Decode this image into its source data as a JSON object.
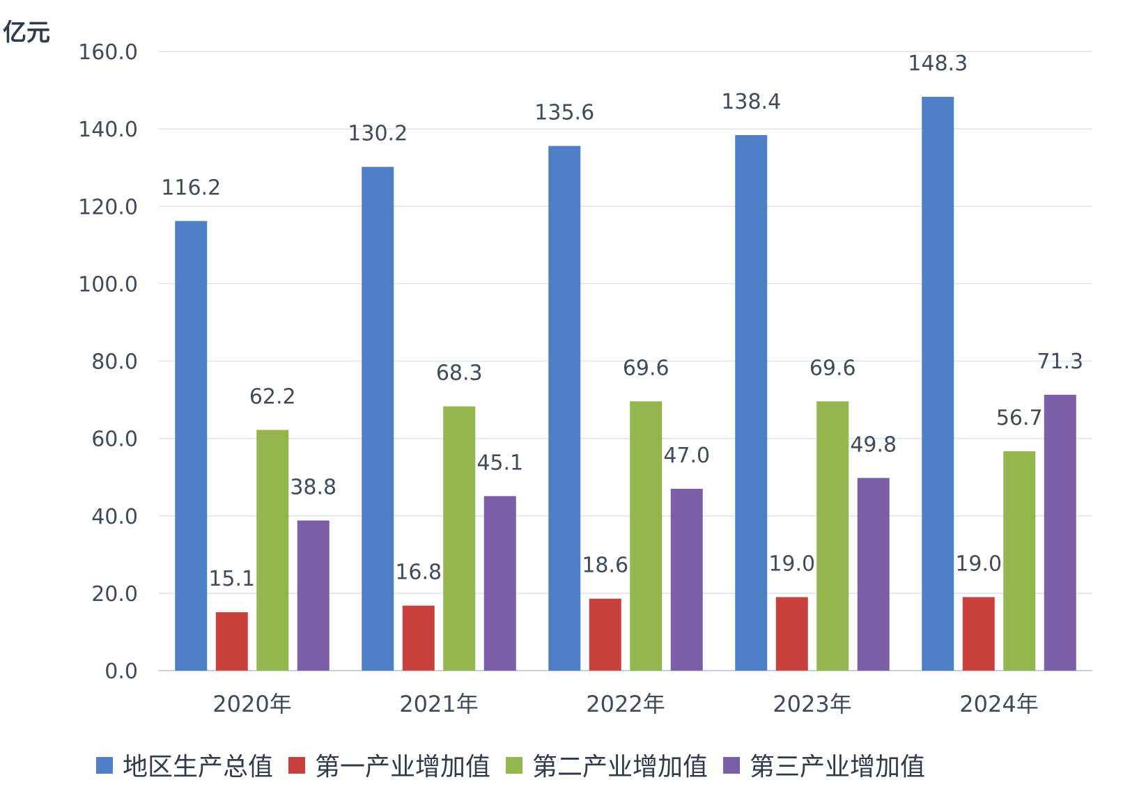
{
  "chart_data": {
    "type": "bar",
    "ylabel": "亿元",
    "ylim": [
      0,
      160
    ],
    "yticks": [
      "0.0",
      "20.0",
      "40.0",
      "60.0",
      "80.0",
      "100.0",
      "120.0",
      "140.0",
      "160.0"
    ],
    "grid": true,
    "legend_position": "bottom",
    "categories": [
      "2020年",
      "2021年",
      "2022年",
      "2023年",
      "2024年"
    ],
    "series": [
      {
        "name": "地区生产总值",
        "color": "#4f7fc4",
        "values": [
          116.2,
          130.2,
          135.6,
          138.4,
          148.3
        ],
        "labels": [
          "116.2",
          "130.2",
          "135.6",
          "138.4",
          "148.3"
        ]
      },
      {
        "name": "第一产业增加值",
        "color": "#c9403d",
        "values": [
          15.1,
          16.8,
          18.6,
          19.0,
          19.0
        ],
        "labels": [
          "15.1",
          "16.8",
          "18.6",
          "19.0",
          "19.0"
        ]
      },
      {
        "name": "第二产业增加值",
        "color": "#93b64d",
        "values": [
          62.2,
          68.3,
          69.6,
          69.6,
          56.7
        ],
        "labels": [
          "62.2",
          "68.3",
          "69.6",
          "69.6",
          "56.7"
        ]
      },
      {
        "name": "第三产业增加值",
        "color": "#7c5ea6",
        "values": [
          38.8,
          45.1,
          47.0,
          49.8,
          71.3
        ],
        "labels": [
          "38.8",
          "45.1",
          "47.0",
          "49.8",
          "71.3"
        ]
      }
    ]
  }
}
